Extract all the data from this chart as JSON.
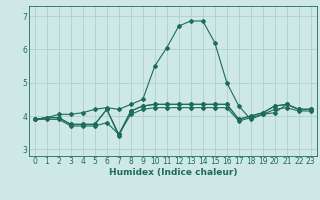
{
  "xlabel": "Humidex (Indice chaleur)",
  "bg_color": "#cde8e5",
  "grid_color": "#aecfcc",
  "line_color": "#1e6b5e",
  "xlim": [
    -0.5,
    23.5
  ],
  "ylim": [
    2.8,
    7.3
  ],
  "xticks": [
    0,
    1,
    2,
    3,
    4,
    5,
    6,
    7,
    8,
    9,
    10,
    11,
    12,
    13,
    14,
    15,
    16,
    17,
    18,
    19,
    20,
    21,
    22,
    23
  ],
  "yticks": [
    3,
    4,
    5,
    6,
    7
  ],
  "series": [
    [
      3.9,
      3.95,
      3.95,
      3.75,
      3.75,
      3.75,
      4.2,
      3.4,
      4.15,
      4.3,
      4.35,
      4.35,
      4.35,
      4.35,
      4.35,
      4.35,
      4.35,
      3.9,
      4.0,
      4.1,
      4.3,
      4.35,
      4.2,
      4.2
    ],
    [
      3.9,
      3.9,
      3.9,
      3.7,
      3.7,
      3.7,
      3.8,
      3.45,
      4.05,
      4.2,
      4.25,
      4.25,
      4.25,
      4.25,
      4.25,
      4.25,
      4.25,
      3.85,
      3.95,
      4.05,
      4.2,
      4.25,
      4.15,
      4.15
    ],
    [
      3.9,
      3.95,
      3.95,
      3.75,
      3.75,
      3.75,
      4.2,
      3.45,
      4.15,
      4.3,
      4.35,
      4.35,
      4.35,
      4.35,
      4.35,
      4.35,
      4.35,
      3.9,
      4.0,
      4.1,
      4.3,
      4.35,
      4.2,
      4.2
    ],
    [
      3.9,
      3.95,
      4.05,
      4.05,
      4.1,
      4.2,
      4.25,
      4.2,
      4.35,
      4.5,
      5.5,
      6.05,
      6.7,
      6.85,
      6.85,
      6.2,
      5.0,
      4.3,
      3.9,
      4.05,
      4.1,
      4.35,
      4.2,
      4.2
    ]
  ]
}
